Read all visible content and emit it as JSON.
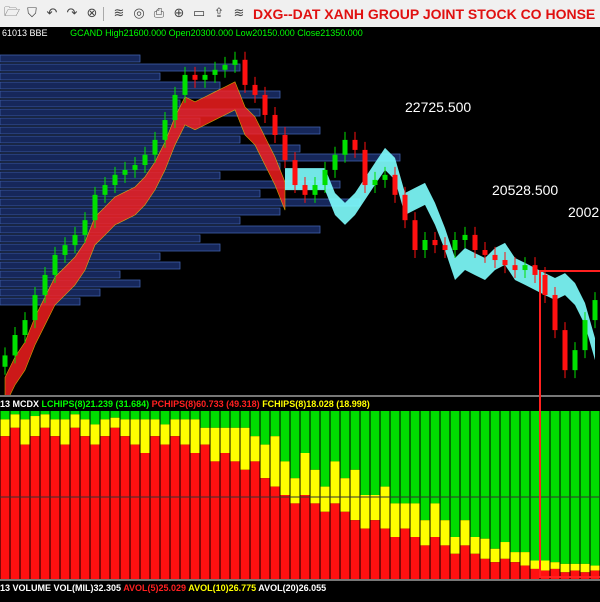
{
  "toolbar": {
    "icons": [
      "folder-icon",
      "filter-icon",
      "undo-icon",
      "redo-icon",
      "close-circle-icon",
      "wifi-icon",
      "target-icon",
      "print-icon",
      "add-circle-icon",
      "save-icon",
      "export-icon",
      "layers-icon"
    ],
    "title": "DXG--DAT XANH GROUP JOINT STOCK CO  HONSE"
  },
  "infobar": {
    "code": "61013 BBE",
    "ohlc": "GCAND High21600.000 Open20300.000 Low20150.000 Close21350.000"
  },
  "price_labels": [
    "22725.500",
    "20528.500",
    "2002"
  ],
  "mcdx_header": {
    "prefix": "13 MCDX",
    "lchips": "LCHIPS(8)21.239 (31.684)",
    "pchips": "PCHIPS(8)60.733 (49.318)",
    "fchips": "FCHIPS(8)18.028 (18.998)"
  },
  "volume_header": {
    "vol": "13 VOLUME VOL(MIL)32.305",
    "avol5": "AVOL(5)25.029",
    "avol10": "AVOL(10)26.775",
    "avol20": "AVOL(20)26.055"
  },
  "colors": {
    "up": "#00e000",
    "down": "#ff1010",
    "cloud_up": "#ff2020",
    "cloud_down": "#80ffff",
    "profile": "#3050a0",
    "lchips": "#00dd00",
    "pchips": "#ff1010",
    "fchips": "#ffff00",
    "highlight_box": "#ff2020"
  },
  "chart_data": {
    "type": "candlestick",
    "price_levels": [
      22725.5,
      20528.5
    ],
    "close": [
      16150,
      16690,
      17085,
      17750,
      18280,
      18810,
      19070,
      19340,
      19730,
      20400,
      20660,
      20930,
      21060,
      21190,
      21460,
      21855,
      22380,
      23045,
      23575,
      23445,
      23575,
      23710,
      23840,
      23975,
      23310,
      23045,
      22515,
      21985,
      21320,
      20660,
      20400,
      20660,
      21060,
      21460,
      21855,
      21590,
      20660,
      20795,
      20930,
      20400,
      19730,
      18940,
      19205,
      19070,
      18940,
      19205,
      19340,
      18940,
      18810,
      18675,
      18540,
      18410,
      18540,
      18280,
      17750,
      16820,
      15760,
      16290,
      17085,
      17615
    ],
    "volume_profile": [
      0.35,
      0.6,
      0.4,
      0.55,
      0.7,
      0.45,
      0.65,
      0.5,
      0.8,
      0.6,
      0.75,
      1.0,
      0.7,
      0.55,
      0.85,
      0.65,
      0.9,
      0.7,
      0.6,
      0.8,
      0.5,
      0.55,
      0.4,
      0.45,
      0.3,
      0.35,
      0.25,
      0.2
    ],
    "mcdx": {
      "pchips_fraction": [
        0.85,
        0.9,
        0.8,
        0.85,
        0.9,
        0.85,
        0.8,
        0.9,
        0.85,
        0.8,
        0.85,
        0.9,
        0.85,
        0.8,
        0.75,
        0.85,
        0.8,
        0.85,
        0.8,
        0.75,
        0.8,
        0.7,
        0.75,
        0.7,
        0.65,
        0.7,
        0.6,
        0.55,
        0.5,
        0.45,
        0.5,
        0.45,
        0.4,
        0.45,
        0.4,
        0.35,
        0.3,
        0.35,
        0.3,
        0.25,
        0.3,
        0.25,
        0.2,
        0.25,
        0.2,
        0.15,
        0.2,
        0.15,
        0.12,
        0.1,
        0.12,
        0.1,
        0.08,
        0.06,
        0.05,
        0.06,
        0.04,
        0.05,
        0.04,
        0.05
      ],
      "fchips_fraction": [
        0.1,
        0.08,
        0.15,
        0.12,
        0.08,
        0.1,
        0.15,
        0.08,
        0.1,
        0.12,
        0.1,
        0.06,
        0.1,
        0.15,
        0.2,
        0.1,
        0.12,
        0.1,
        0.15,
        0.2,
        0.1,
        0.2,
        0.15,
        0.2,
        0.25,
        0.15,
        0.2,
        0.3,
        0.2,
        0.15,
        0.25,
        0.2,
        0.15,
        0.25,
        0.2,
        0.3,
        0.2,
        0.15,
        0.25,
        0.2,
        0.15,
        0.2,
        0.15,
        0.2,
        0.15,
        0.1,
        0.15,
        0.1,
        0.12,
        0.08,
        0.1,
        0.06,
        0.08,
        0.05,
        0.06,
        0.04,
        0.05,
        0.04,
        0.05,
        0.03
      ]
    }
  }
}
